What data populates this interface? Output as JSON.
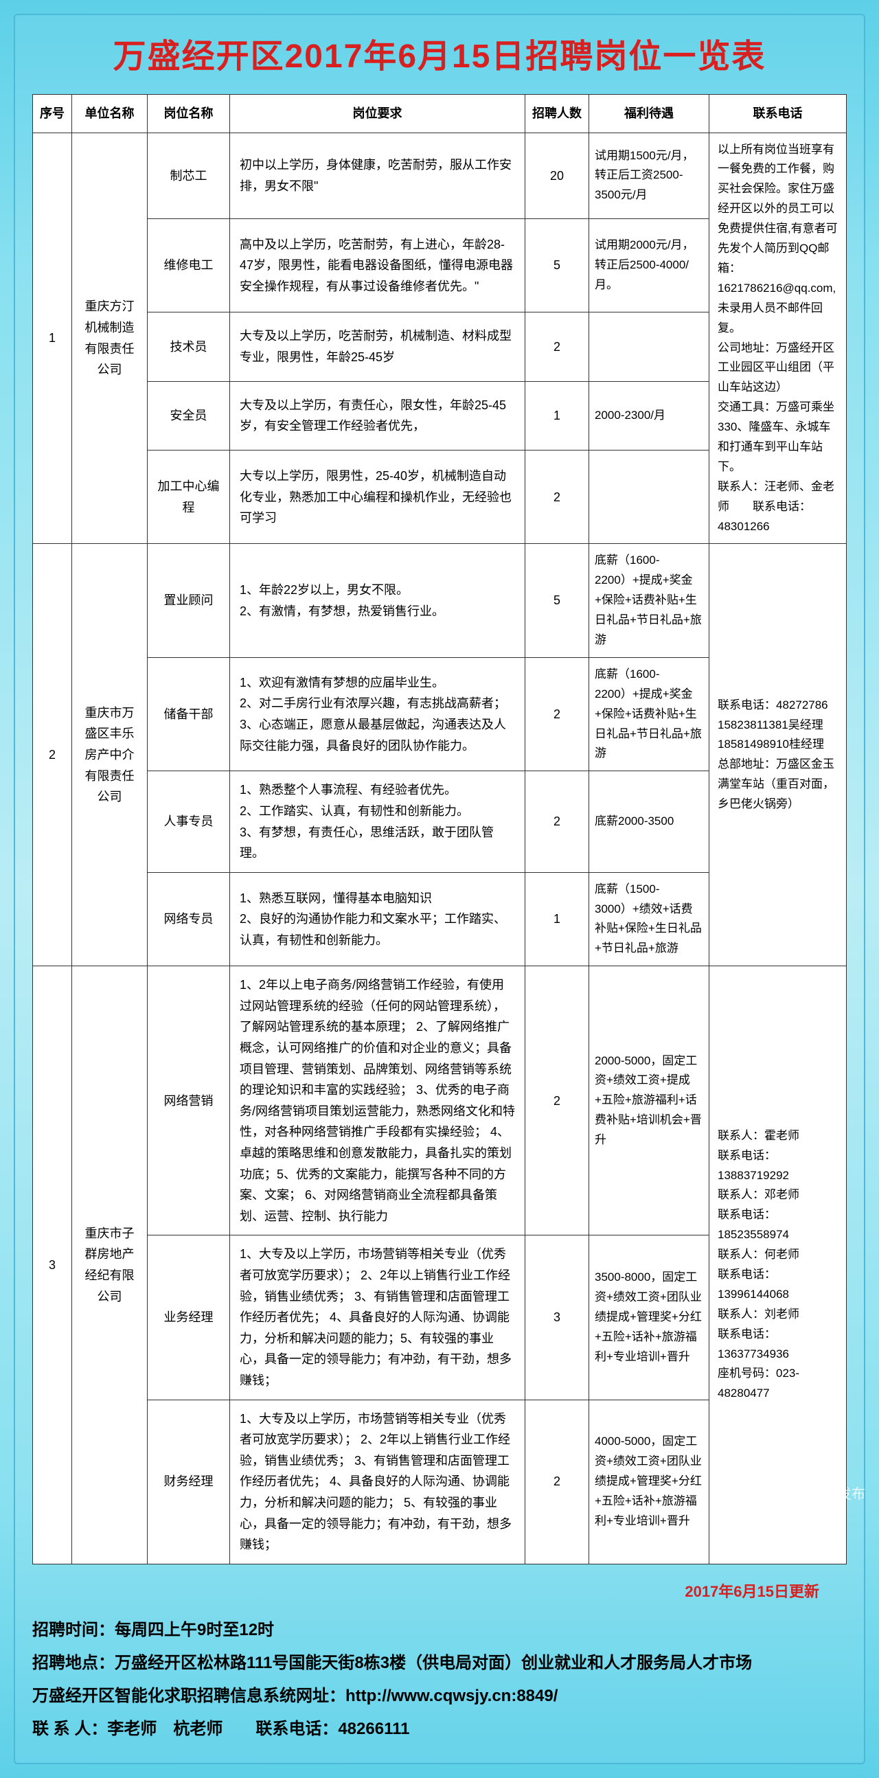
{
  "title": "万盛经开区2017年6月15日招聘岗位一览表",
  "headers": {
    "seq": "序号",
    "company": "单位名称",
    "position": "岗位名称",
    "requirement": "岗位要求",
    "count": "招聘人数",
    "benefit": "福利待遇",
    "contact": "联系电话"
  },
  "groups": [
    {
      "seq": "1",
      "company": "重庆方汀机械制造有限责任公司",
      "contact": "以上所有岗位当班享有一餐免费的工作餐，购买社会保险。家住万盛经开区以外的员工可以免费提供住宿,有意者可先发个人简历到QQ邮箱：1621786216@qq.com,未录用人员不邮件回复。\n公司地址：万盛经开区工业园区平山组团（平山车站这边）\n交通工具：万盛可乘坐330、隆盛车、永城车和打通车到平山车站下。\n联系人：汪老师、金老师　　联系电话：48301266",
      "rows": [
        {
          "position": "制芯工",
          "requirement": "初中以上学历，身体健康，吃苦耐劳，服从工作安排，男女不限\"",
          "count": "20",
          "benefit": "试用期1500元/月，转正后工资2500-3500元/月"
        },
        {
          "position": "维修电工",
          "requirement": "高中及以上学历，吃苦耐劳，有上进心，年龄28-47岁，限男性，能看电器设备图纸，懂得电源电器安全操作规程，有从事过设备维修者优先。\"",
          "count": "5",
          "benefit": "试用期2000元/月，转正后2500-4000/月。"
        },
        {
          "position": "技术员",
          "requirement": "大专及以上学历，吃苦耐劳，机械制造、材料成型专业，限男性，年龄25-45岁",
          "count": "2",
          "benefit": ""
        },
        {
          "position": "安全员",
          "requirement": "大专及以上学历，有责任心，限女性，年龄25-45岁，有安全管理工作经验者优先，",
          "count": "1",
          "benefit": "2000-2300/月"
        },
        {
          "position": "加工中心编程",
          "requirement": "大专以上学历，限男性，25-40岁，机械制造自动化专业，熟悉加工中心编程和操机作业，无经验也可学习",
          "count": "2",
          "benefit": ""
        }
      ]
    },
    {
      "seq": "2",
      "company": "重庆市万盛区丰乐房产中介有限责任公司",
      "contact": "联系电话：48272786\n15823811381吴经理\n18581498910桂经理\n总部地址：万盛区金玉满堂车站（重百对面，乡巴佬火锅旁）",
      "rows": [
        {
          "position": "置业顾问",
          "requirement": "1、年龄22岁以上，男女不限。\n2、有激情，有梦想，热爱销售行业。",
          "count": "5",
          "benefit": "底薪（1600-2200）+提成+奖金+保险+话费补贴+生日礼品+节日礼品+旅游"
        },
        {
          "position": "储备干部",
          "requirement": "1、欢迎有激情有梦想的应届毕业生。\n2、对二手房行业有浓厚兴趣，有志挑战高薪者；\n3、心态端正，愿意从最基层做起，沟通表达及人际交往能力强，具备良好的团队协作能力。",
          "count": "2",
          "benefit": "底薪（1600-2200）+提成+奖金+保险+话费补贴+生日礼品+节日礼品+旅游"
        },
        {
          "position": "人事专员",
          "requirement": "1、熟悉整个人事流程、有经验者优先。\n2、工作踏实、认真，有韧性和创新能力。\n3、有梦想，有责任心，思维活跃，敢于团队管理。",
          "count": "2",
          "benefit": "底薪2000-3500"
        },
        {
          "position": "网络专员",
          "requirement": "1、熟悉互联网，懂得基本电脑知识\n2、良好的沟通协作能力和文案水平；工作踏实、认真，有韧性和创新能力。",
          "count": "1",
          "benefit": "底薪（1500-3000）+绩效+话费补贴+保险+生日礼品+节日礼品+旅游"
        }
      ]
    },
    {
      "seq": "3",
      "company": "重庆市子群房地产经纪有限公司",
      "contact": "联系人：霍老师\n联系电话：13883719292\n联系人：邓老师\n联系电话：18523558974\n联系人：何老师\n联系电话：13996144068\n联系人：刘老师\n联系电话：13637734936\n座机号码：023-48280477",
      "rows": [
        {
          "position": "网络营销",
          "requirement": "1、2年以上电子商务/网络营销工作经验，有使用过网站管理系统的经验（任何的网站管理系统），了解网站管理系统的基本原理； 2、了解网络推广概念，认可网络推广的价值和对企业的意义；具备项目管理、营销策划、品牌策划、网络营销等系统的理论知识和丰富的实践经验； 3、优秀的电子商务/网络营销项目策划运营能力，熟悉网络文化和特性，对各种网络营销推广手段都有实操经验； 4、卓越的策略思维和创意发散能力，具备扎实的策划功底；5、优秀的文案能力，能撰写各种不同的方案、文案； 6、对网络营销商业全流程都具备策划、运营、控制、执行能力",
          "count": "2",
          "benefit": "2000-5000，固定工资+绩效工资+提成+五险+旅游福利+话费补贴+培训机会+晋升"
        },
        {
          "position": "业务经理",
          "requirement": "1、大专及以上学历，市场营销等相关专业（优秀者可放宽学历要求）； 2、2年以上销售行业工作经验，销售业绩优秀； 3、有销售管理和店面管理工作经历者优先； 4、具备良好的人际沟通、协调能力，分析和解决问题的能力；5、有较强的事业心，具备一定的领导能力；有冲劲，有干劲，想多赚钱；",
          "count": "3",
          "benefit": "3500-8000，固定工资+绩效工资+团队业绩提成+管理奖+分红+五险+话补+旅游福利+专业培训+晋升"
        },
        {
          "position": "财务经理",
          "requirement": "1、大专及以上学历，市场营销等相关专业（优秀者可放宽学历要求）； 2、2年以上销售行业工作经验，销售业绩优秀； 3、有销售管理和店面管理工作经历者优先； 4、具备良好的人际沟通、协调能力，分析和解决问题的能力； 5、有较强的事业心，具备一定的领导能力；有冲劲，有干劲，想多赚钱；",
          "count": "2",
          "benefit": "4000-5000，固定工资+绩效工资+团队业绩提成+管理奖+分红+五险+话补+旅游福利+专业培训+晋升"
        }
      ]
    }
  ],
  "update_text": "2017年6月15日更新",
  "footer": {
    "l1": "招聘时间：每周四上午9时至12时",
    "l2": "招聘地点：万盛经开区松林路111号国能天街8栋3楼（供电局对面）创业就业和人才服务局人才市场",
    "l3": "万盛经开区智能化求职招聘信息系统网址：http://www.cqwsjy.cn:8849/",
    "l4": "联 系 人：李老师　杭老师　　联系电话：48266111"
  },
  "watermark": "万盛微发布"
}
